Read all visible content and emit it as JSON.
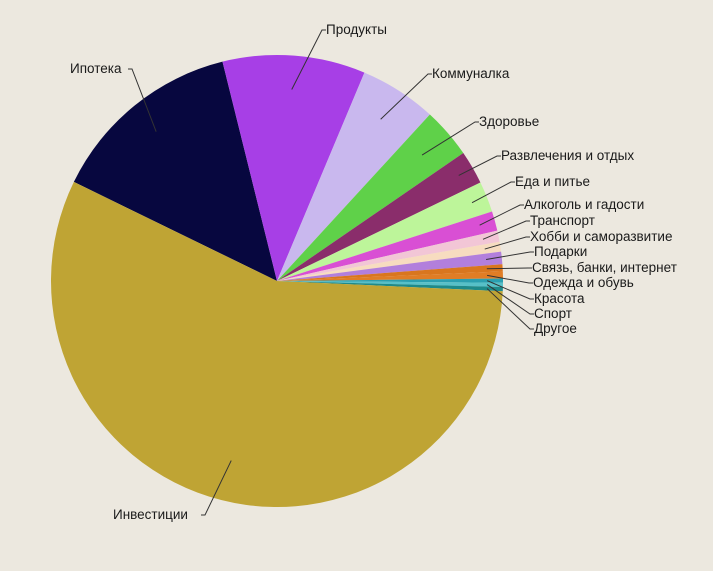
{
  "chart_data": {
    "type": "pie",
    "title": "",
    "series": [
      {
        "slices": [
          {
            "label": "Ипотека",
            "value": 13.9,
            "color": "#07073f"
          },
          {
            "label": "Продукты",
            "value": 10.2,
            "color": "#a73fe6"
          },
          {
            "label": "Коммуналка",
            "value": 5.5,
            "color": "#c9b8ee"
          },
          {
            "label": "Здоровье",
            "value": 3.6,
            "color": "#5fd149"
          },
          {
            "label": "Развлечения и отдых",
            "value": 2.4,
            "color": "#8a2d6b"
          },
          {
            "label": "Еда и питье",
            "value": 2.2,
            "color": "#bdf59a"
          },
          {
            "label": "Алкоголь и гадости",
            "value": 1.4,
            "color": "#d94fd4"
          },
          {
            "label": "Транспорт",
            "value": 0.8,
            "color": "#f2c6d6"
          },
          {
            "label": "Хобби и саморазвитие",
            "value": 0.7,
            "color": "#f7dcc0"
          },
          {
            "label": "Подарки",
            "value": 0.9,
            "color": "#b27fdc"
          },
          {
            "label": "Связь, банки, интернет",
            "value": 0.5,
            "color": "#d9761e"
          },
          {
            "label": "Одежда и обувь",
            "value": 0.5,
            "color": "#e07d25"
          },
          {
            "label": "Красота",
            "value": 0.3,
            "color": "#2a9fb0"
          },
          {
            "label": "Спорт",
            "value": 0.3,
            "color": "#57c0c8"
          },
          {
            "label": "Другое",
            "value": 0.3,
            "color": "#1e8a8a"
          },
          {
            "label": "Инвестиции",
            "value": 56.5,
            "color": "#bfa434"
          }
        ]
      }
    ],
    "legend": "none"
  }
}
